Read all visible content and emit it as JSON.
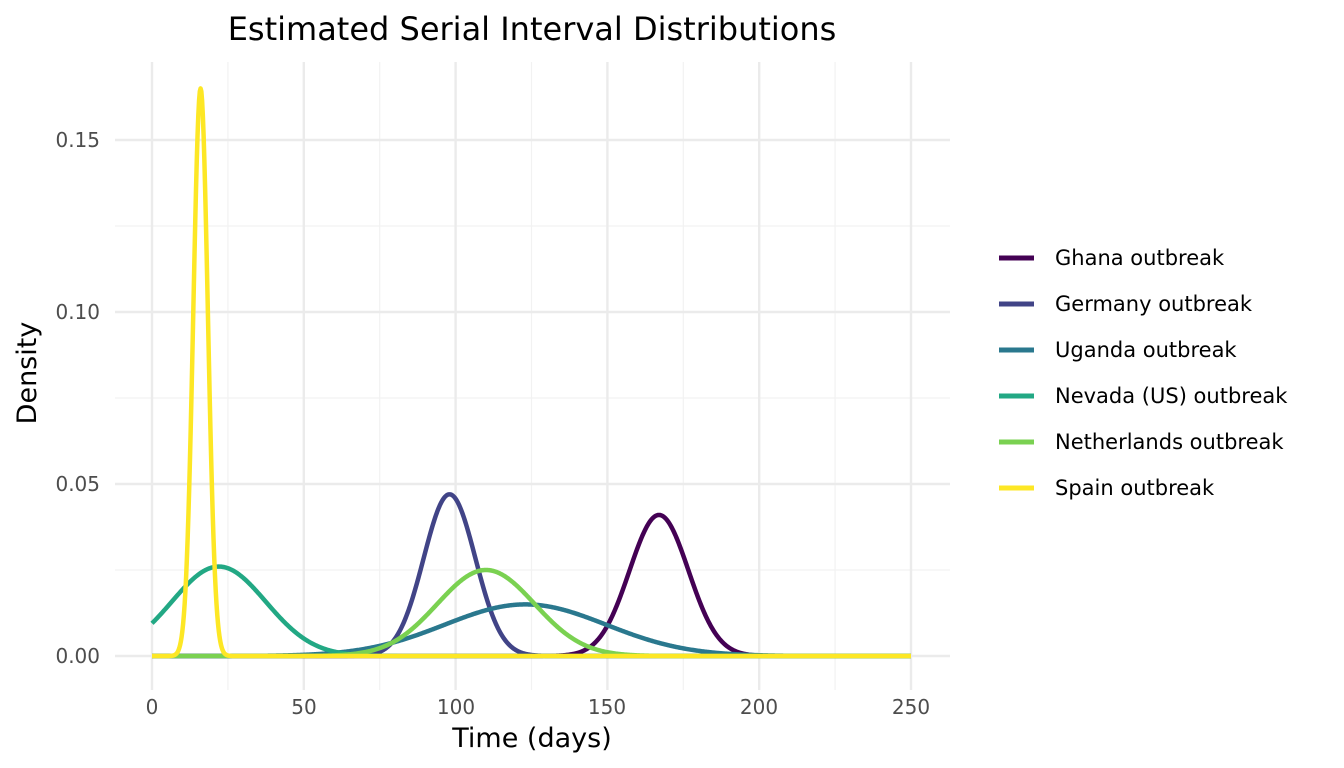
{
  "chart_data": {
    "type": "line",
    "title": "Estimated Serial Interval Distributions",
    "xlabel": "Time (days)",
    "ylabel": "Density",
    "xlim": [
      0,
      250
    ],
    "ylim": [
      0,
      0.165
    ],
    "x_ticks": [
      0,
      50,
      100,
      150,
      200,
      250
    ],
    "x_tick_labels": [
      "0",
      "50",
      "100",
      "150",
      "200",
      "250"
    ],
    "y_ticks": [
      0,
      0.05,
      0.1,
      0.15
    ],
    "y_tick_labels": [
      "0.00",
      "0.05",
      "0.10",
      "0.15"
    ],
    "grid": true,
    "legend_position": "right",
    "x": [
      0,
      10,
      20,
      30,
      40,
      50,
      60,
      70,
      80,
      90,
      100,
      110,
      120,
      130,
      140,
      150,
      160,
      170,
      180,
      190,
      200,
      210,
      220,
      230,
      240,
      250
    ],
    "series": [
      {
        "name": "Ghana outbreak",
        "color": "#440154",
        "mean": 167,
        "sd": 9.7,
        "peak": 0.041,
        "values": [
          0,
          0,
          0,
          0,
          0,
          0,
          0,
          0,
          0,
          0,
          0,
          0,
          0,
          0,
          0.0001,
          0.0044,
          0.0318,
          0.0393,
          0.0099,
          0.0004,
          0,
          0,
          0,
          0,
          0,
          0
        ]
      },
      {
        "name": "Germany outbreak",
        "color": "#414487",
        "mean": 98,
        "sd": 8.5,
        "peak": 0.047,
        "values": [
          0,
          0,
          0,
          0,
          0,
          0,
          0,
          0,
          0.0049,
          0.0302,
          0.0455,
          0.0174,
          0.0017,
          0,
          0,
          0,
          0,
          0,
          0,
          0,
          0,
          0,
          0,
          0,
          0,
          0
        ]
      },
      {
        "name": "Uganda outbreak",
        "color": "#2a788e",
        "mean": 123,
        "sd": 26.6,
        "peak": 0.015,
        "values": [
          0,
          0,
          0,
          0,
          0.0001,
          0.0003,
          0.001,
          0.0021,
          0.004,
          0.0072,
          0.0104,
          0.0135,
          0.0149,
          0.0145,
          0.0123,
          0.0091,
          0.0057,
          0.0031,
          0.0015,
          0.0006,
          0.0002,
          0.0001,
          0,
          0,
          0,
          0
        ]
      },
      {
        "name": "Nevada (US) outbreak",
        "color": "#22a884",
        "mean": 22,
        "sd": 15.5,
        "peak": 0.026,
        "values": [
          0.0095,
          0.0192,
          0.0255,
          0.0223,
          0.013,
          0.005,
          0.0012,
          0.0002,
          0,
          0,
          0,
          0,
          0,
          0,
          0,
          0,
          0,
          0,
          0,
          0,
          0,
          0,
          0,
          0,
          0,
          0
        ]
      },
      {
        "name": "Netherlands outbreak",
        "color": "#7ad151",
        "mean": 110,
        "sd": 16,
        "peak": 0.025,
        "values": [
          0,
          0,
          0,
          0,
          0,
          0.0001,
          0.0013,
          0.0036,
          0.0106,
          0.0196,
          0.0238,
          0.0249,
          0.0196,
          0.0111,
          0.0046,
          0.0014,
          0.0002,
          0,
          0,
          0,
          0,
          0,
          0,
          0,
          0,
          0
        ]
      },
      {
        "name": "Spain outbreak",
        "color": "#fde725",
        "mean": 16,
        "sd": 2.4,
        "peak": 0.165,
        "values": [
          0,
          0.0008,
          0.0408,
          0,
          0,
          0,
          0,
          0,
          0,
          0,
          0,
          0,
          0,
          0,
          0,
          0,
          0,
          0,
          0,
          0,
          0,
          0,
          0,
          0,
          0,
          0
        ]
      }
    ]
  },
  "legend": {
    "items": [
      {
        "label": "Ghana outbreak",
        "color": "#440154"
      },
      {
        "label": "Germany outbreak",
        "color": "#414487"
      },
      {
        "label": "Uganda outbreak",
        "color": "#2a788e"
      },
      {
        "label": "Nevada (US) outbreak",
        "color": "#22a884"
      },
      {
        "label": "Netherlands outbreak",
        "color": "#7ad151"
      },
      {
        "label": "Spain outbreak",
        "color": "#fde725"
      }
    ]
  }
}
